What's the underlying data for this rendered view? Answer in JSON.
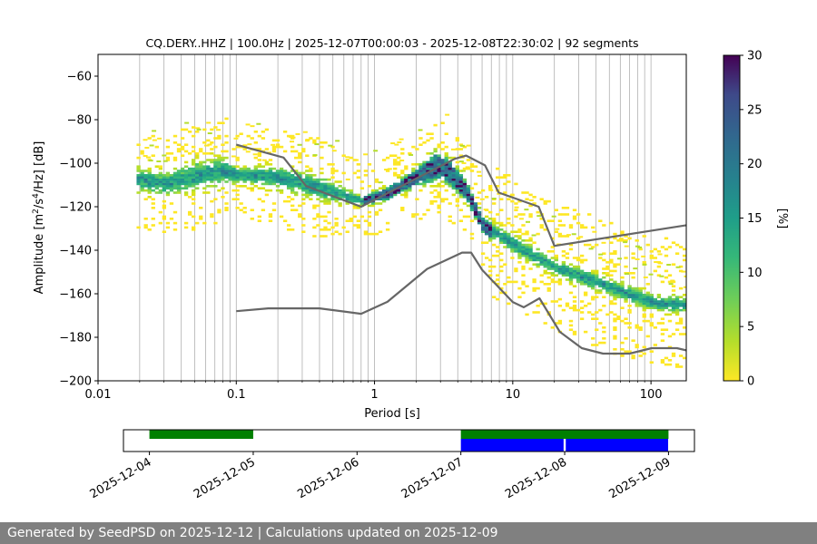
{
  "chart_data": [
    {
      "type": "heatmap",
      "title": "CQ.DERY..HHZ | 100.0Hz | 2025-12-07T00:00:03 - 2025-12-08T22:30:02 | 92 segments",
      "xlabel": "Period [s]",
      "ylabel_main": "Amplitude [m",
      "ylabel_parts": [
        "2",
        "/s",
        "4",
        "/Hz] [dB]"
      ],
      "x_scale": "log",
      "xlim": [
        0.01,
        180
      ],
      "ylim": [
        -200,
        -50
      ],
      "x_ticks": [
        0.01,
        0.1,
        1,
        10,
        100
      ],
      "x_tick_labels": [
        "0.01",
        "0.1",
        "1",
        "10",
        "100"
      ],
      "y_ticks": [
        -200,
        -180,
        -160,
        -140,
        -120,
        -100,
        -80,
        -60
      ],
      "y_tick_labels": [
        "−200",
        "−180",
        "−160",
        "−140",
        "−120",
        "−100",
        "−80",
        "−60"
      ],
      "grid": "vertical",
      "colorbar": {
        "label": "[%]",
        "range": [
          0,
          30
        ],
        "ticks": [
          0,
          5,
          10,
          15,
          20,
          25,
          30
        ],
        "tick_labels": [
          "0",
          "5",
          "10",
          "15",
          "20",
          "25",
          "30"
        ],
        "colormap": "viridis"
      },
      "density_bands": [
        {
          "name": "upper",
          "points": [
            [
              0.02,
              -104
            ],
            [
              0.03,
              -106
            ],
            [
              0.05,
              -101
            ],
            [
              0.08,
              -99
            ],
            [
              0.1,
              -104
            ],
            [
              0.2,
              -103
            ],
            [
              0.4,
              -108
            ],
            [
              0.8,
              -117
            ],
            [
              1.2,
              -113
            ],
            [
              2,
              -104
            ],
            [
              2.7,
              -97
            ],
            [
              3.5,
              -101
            ],
            [
              4.5,
              -111
            ],
            [
              6,
              -127
            ],
            [
              10,
              -135
            ],
            [
              20,
              -146
            ],
            [
              50,
              -155
            ],
            [
              100,
              -162
            ],
            [
              180,
              -163
            ]
          ]
        },
        {
          "name": "lower",
          "points": [
            [
              0.02,
              -112
            ],
            [
              0.03,
              -114
            ],
            [
              0.05,
              -111
            ],
            [
              0.1,
              -108
            ],
            [
              0.2,
              -111
            ],
            [
              0.4,
              -116
            ],
            [
              0.8,
              -119
            ],
            [
              1.2,
              -116
            ],
            [
              2,
              -109
            ],
            [
              3,
              -106
            ],
            [
              4.5,
              -116
            ],
            [
              6,
              -132
            ],
            [
              10,
              -141
            ],
            [
              20,
              -151
            ],
            [
              50,
              -160
            ],
            [
              100,
              -167
            ],
            [
              180,
              -168
            ]
          ]
        }
      ],
      "series": [
        {
          "name": "NHNM",
          "color": "#666666",
          "points": [
            [
              0.1,
              -91.5
            ],
            [
              0.22,
              -97.4
            ],
            [
              0.32,
              -110.5
            ],
            [
              0.8,
              -120
            ],
            [
              3.8,
              -98
            ],
            [
              4.6,
              -96.5
            ],
            [
              6.3,
              -101
            ],
            [
              7.9,
              -113.5
            ],
            [
              15.4,
              -120
            ],
            [
              20,
              -138
            ],
            [
              180,
              -128.5
            ]
          ]
        },
        {
          "name": "NLNM",
          "color": "#666666",
          "points": [
            [
              0.1,
              -168
            ],
            [
              0.17,
              -166.7
            ],
            [
              0.4,
              -166.7
            ],
            [
              0.8,
              -169.2
            ],
            [
              1.24,
              -163.7
            ],
            [
              2.4,
              -148.6
            ],
            [
              4.3,
              -141.1
            ],
            [
              5,
              -141.1
            ],
            [
              6,
              -149
            ],
            [
              10,
              -163.8
            ],
            [
              12,
              -166.2
            ],
            [
              15.6,
              -162.1
            ],
            [
              21.9,
              -177.5
            ],
            [
              31.6,
              -185
            ],
            [
              45,
              -187.5
            ],
            [
              70,
              -187.5
            ],
            [
              101,
              -185
            ],
            [
              154,
              -185
            ],
            [
              180,
              -186
            ]
          ]
        }
      ]
    },
    {
      "type": "timeline",
      "x_tick_labels": [
        "2025-12-04",
        "2025-12-05",
        "2025-12-06",
        "2025-12-07",
        "2025-12-08",
        "2025-12-09"
      ],
      "xlim": [
        "2025-12-03T18:00",
        "2025-12-09T06:00"
      ],
      "availability": [
        {
          "start": "2025-12-04T00:00",
          "end": "2025-12-05T00:00",
          "color": "#008000"
        },
        {
          "start": "2025-12-07T00:00",
          "end": "2025-12-09T00:00",
          "color": "#008000"
        }
      ],
      "psd_segments": [
        {
          "start": "2025-12-07T00:00",
          "end": "2025-12-07T23:45",
          "color": "#0000ff"
        },
        {
          "start": "2025-12-08T00:15",
          "end": "2025-12-08T23:55",
          "color": "#0000ff"
        }
      ]
    }
  ],
  "footer": {
    "text": "Generated by SeedPSD on 2025-12-12 | Calculations updated on 2025-12-09"
  }
}
